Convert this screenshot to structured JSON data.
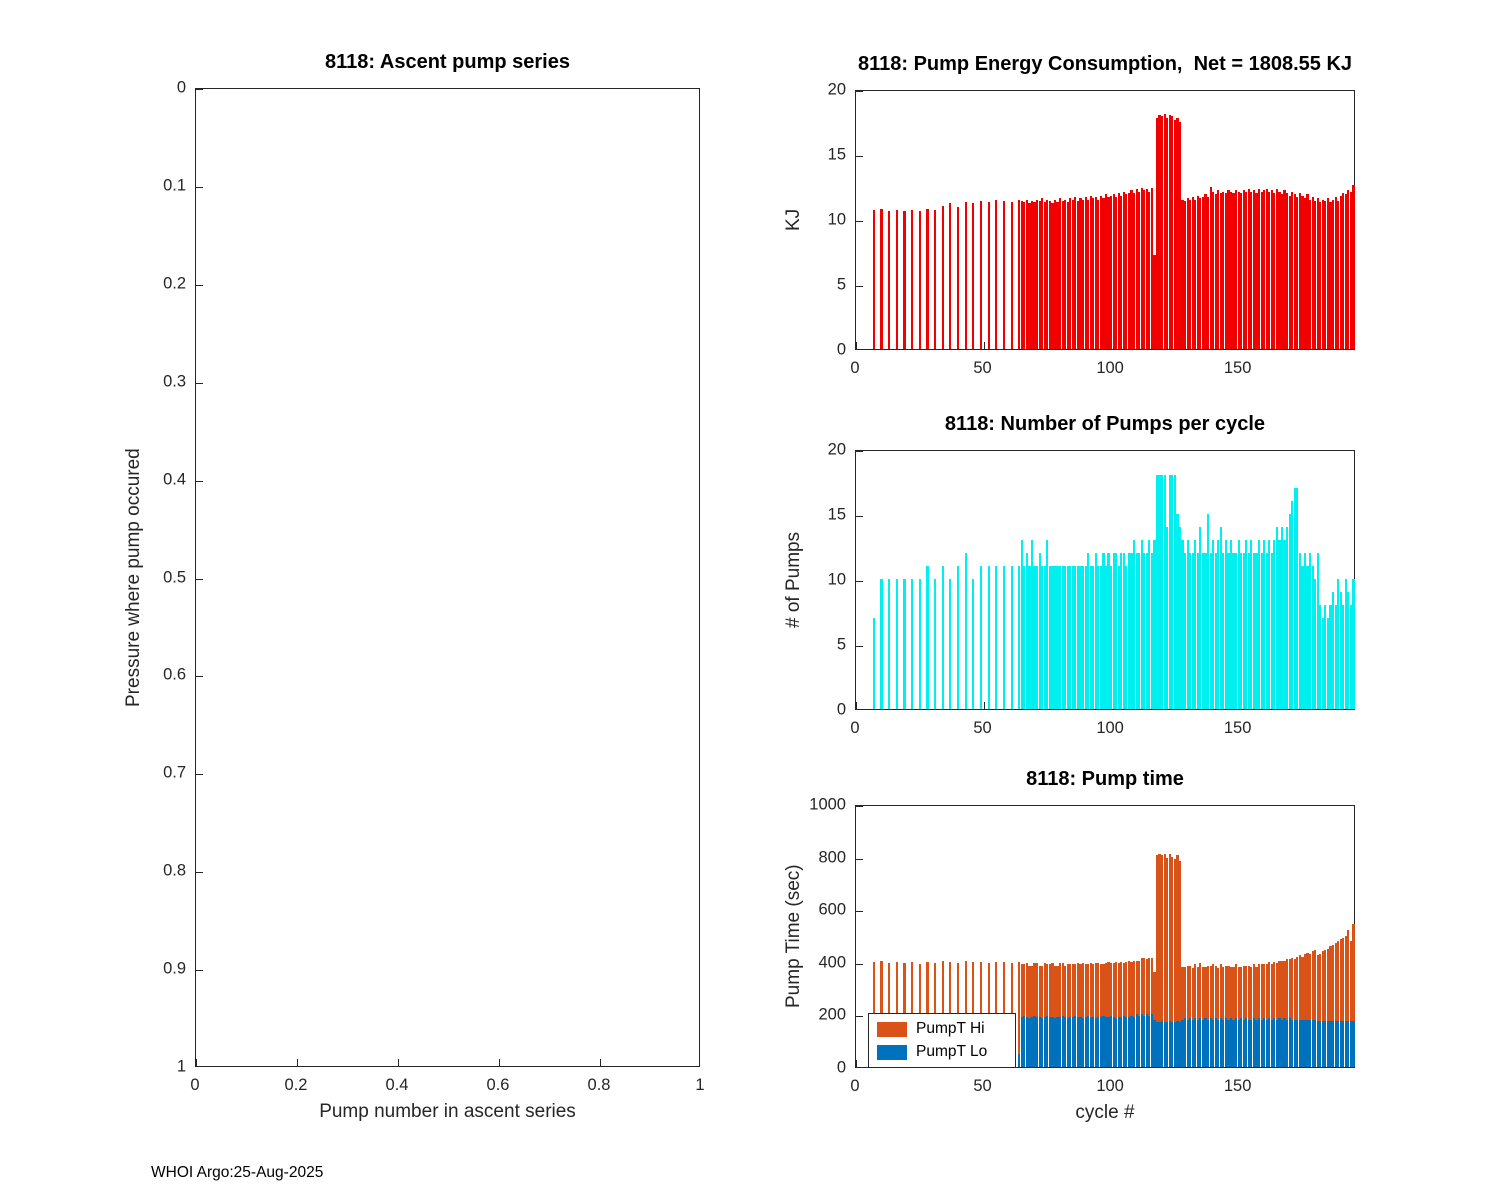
{
  "figure": {
    "footer": "WHOI Argo:25-Aug-2025"
  },
  "chart_data": [
    {
      "type": "bar",
      "title": "8118: Ascent pump series",
      "xlabel": "Pump number in ascent series",
      "ylabel": "Pressure where pump occured",
      "xlim": [
        0,
        1
      ],
      "ylim": [
        0,
        1
      ],
      "y_reversed": true,
      "grid": false,
      "xticks": [
        0,
        0.2,
        0.4,
        0.6,
        0.8,
        1
      ],
      "yticks": [
        0,
        0.1,
        0.2,
        0.3,
        0.4,
        0.5,
        0.6,
        0.7,
        0.8,
        0.9,
        1
      ],
      "values": []
    },
    {
      "type": "bar",
      "title": "8118: Pump Energy Consumption,  Net = 1808.55 KJ",
      "ylabel": "KJ",
      "net_kj": 1808.55,
      "color": "#f20000",
      "xlim": [
        0,
        196
      ],
      "ylim": [
        0,
        20
      ],
      "grid": false,
      "xticks": [
        0,
        50,
        100,
        150
      ],
      "yticks": [
        0,
        5,
        10,
        15,
        20
      ],
      "x_start": 1,
      "values": [
        0,
        0,
        0,
        0,
        0,
        0,
        10.7,
        0,
        0,
        10.8,
        0,
        0,
        10.6,
        0,
        0,
        10.7,
        0,
        0,
        10.6,
        0,
        0,
        10.7,
        0,
        0,
        10.6,
        0,
        0,
        10.8,
        0,
        0,
        10.7,
        0,
        0,
        11.0,
        0,
        0,
        11.2,
        0,
        0,
        10.9,
        0,
        0,
        11.3,
        0,
        0,
        11.2,
        0,
        0,
        11.4,
        0,
        0,
        11.3,
        0,
        0,
        11.5,
        0,
        0,
        11.4,
        0,
        0,
        11.3,
        0,
        0,
        11.5,
        11.4,
        11.3,
        11.5,
        11.2,
        11.4,
        11.3,
        11.5,
        11.4,
        11.6,
        11.3,
        11.5,
        11.4,
        11.2,
        11.5,
        11.3,
        11.6,
        11.4,
        11.5,
        11.3,
        11.6,
        11.5,
        11.7,
        11.4,
        11.6,
        11.5,
        11.7,
        11.5,
        11.8,
        11.6,
        11.7,
        11.5,
        11.8,
        11.6,
        11.9,
        11.7,
        11.8,
        11.9,
        11.7,
        12.0,
        11.8,
        12.1,
        11.9,
        12.0,
        12.2,
        12.0,
        12.3,
        12.1,
        12.4,
        12.2,
        12.3,
        12.1,
        12.4,
        7.2,
        17.8,
        18.0,
        17.9,
        18.1,
        17.8,
        18.0,
        17.9,
        17.6,
        17.8,
        17.5,
        11.5,
        11.4,
        11.6,
        11.5,
        11.7,
        11.5,
        11.8,
        11.6,
        11.7,
        11.9,
        11.7,
        12.5,
        12.1,
        11.9,
        12.2,
        12.0,
        12.1,
        12.0,
        12.2,
        12.1,
        12.0,
        12.2,
        12.1,
        12.0,
        12.2,
        12.1,
        12.3,
        12.1,
        12.2,
        12.0,
        12.3,
        12.1,
        12.2,
        12.3,
        12.1,
        12.2,
        12.0,
        12.3,
        12.1,
        11.9,
        12.2,
        12.0,
        11.8,
        12.1,
        11.9,
        11.7,
        12.0,
        11.8,
        11.6,
        11.9,
        11.5,
        11.7,
        11.4,
        11.6,
        11.3,
        11.5,
        11.4,
        11.6,
        11.3,
        11.5,
        11.7,
        11.4,
        11.8,
        12.0,
        11.9,
        12.2,
        12.1,
        12.6
      ]
    },
    {
      "type": "bar",
      "title": "8118: Number of Pumps per cycle",
      "ylabel": "# of Pumps",
      "color": "#00efef",
      "xlim": [
        0,
        196
      ],
      "ylim": [
        0,
        20
      ],
      "grid": false,
      "xticks": [
        0,
        50,
        100,
        150
      ],
      "yticks": [
        0,
        5,
        10,
        15,
        20
      ],
      "x_start": 1,
      "values": [
        0,
        0,
        0,
        0,
        0,
        0,
        7,
        0,
        0,
        10,
        0,
        0,
        10,
        0,
        0,
        10,
        0,
        0,
        10,
        0,
        0,
        10,
        0,
        0,
        10,
        0,
        0,
        11,
        0,
        0,
        10,
        0,
        0,
        11,
        0,
        0,
        10,
        0,
        0,
        11,
        0,
        0,
        12,
        0,
        0,
        10,
        0,
        0,
        11,
        0,
        0,
        11,
        0,
        0,
        11,
        0,
        0,
        11,
        0,
        0,
        11,
        0,
        0,
        11,
        13,
        11,
        12,
        11,
        13,
        11,
        11,
        12,
        11,
        11,
        13,
        11,
        11,
        11,
        11,
        11,
        11,
        11,
        11,
        11,
        11,
        11,
        11,
        11,
        11,
        11,
        12,
        11,
        11,
        12,
        11,
        11,
        12,
        11,
        12,
        11,
        12,
        12,
        11,
        12,
        12,
        11,
        12,
        12,
        13,
        12,
        12,
        13,
        12,
        12,
        13,
        12,
        13,
        18,
        18,
        18,
        18,
        14,
        18,
        18,
        18,
        15,
        14,
        13,
        12,
        13,
        12,
        12,
        13,
        12,
        14,
        12,
        12,
        15,
        12,
        13,
        12,
        13,
        14,
        12,
        13,
        12,
        13,
        12,
        12,
        13,
        12,
        12,
        13,
        12,
        13,
        12,
        12,
        13,
        12,
        13,
        12,
        13,
        12,
        13,
        14,
        13,
        14,
        13,
        14,
        15,
        16,
        17,
        17,
        12,
        11,
        12,
        11,
        12,
        11,
        10,
        12,
        8,
        7,
        8,
        7,
        8,
        9,
        8,
        10,
        9,
        8,
        10,
        9,
        8,
        10
      ]
    },
    {
      "type": "stacked-bar",
      "title": "8118: Pump time",
      "xlabel": "cycle #",
      "ylabel": "Pump Time (sec)",
      "xlim": [
        0,
        196
      ],
      "ylim": [
        0,
        1000
      ],
      "grid": false,
      "xticks": [
        0,
        50,
        100,
        150
      ],
      "yticks": [
        0,
        200,
        400,
        600,
        800,
        1000
      ],
      "x_start": 1,
      "legend_position": "bottom-left",
      "series": [
        {
          "name": "PumpT Hi",
          "color": "#d95319",
          "values": [
            0,
            0,
            0,
            0,
            0,
            0,
            350,
            0,
            0,
            355,
            0,
            0,
            345,
            0,
            0,
            350,
            0,
            0,
            345,
            0,
            0,
            350,
            0,
            0,
            340,
            0,
            0,
            350,
            0,
            0,
            345,
            0,
            0,
            355,
            0,
            0,
            350,
            0,
            0,
            345,
            0,
            0,
            355,
            0,
            0,
            350,
            0,
            0,
            350,
            0,
            0,
            345,
            0,
            0,
            350,
            0,
            0,
            350,
            0,
            0,
            345,
            0,
            0,
            350,
            200,
            195,
            205,
            200,
            195,
            200,
            205,
            195,
            200,
            205,
            195,
            200,
            205,
            200,
            195,
            205,
            200,
            195,
            205,
            200,
            200,
            195,
            205,
            200,
            210,
            200,
            195,
            205,
            200,
            210,
            205,
            200,
            195,
            205,
            210,
            200,
            205,
            215,
            205,
            210,
            200,
            210,
            215,
            205,
            215,
            205,
            210,
            215,
            220,
            210,
            220,
            215,
            180,
            635,
            640,
            630,
            640,
            625,
            635,
            630,
            620,
            630,
            615,
            200,
            195,
            205,
            200,
            195,
            205,
            200,
            210,
            200,
            195,
            205,
            200,
            210,
            200,
            195,
            205,
            200,
            200,
            205,
            195,
            200,
            205,
            200,
            195,
            205,
            200,
            205,
            200,
            205,
            200,
            205,
            210,
            205,
            210,
            215,
            210,
            215,
            215,
            220,
            225,
            220,
            230,
            225,
            235,
            230,
            240,
            245,
            240,
            250,
            255,
            250,
            260,
            265,
            250,
            255,
            265,
            270,
            275,
            285,
            290,
            295,
            305,
            310,
            315,
            325,
            345,
            305,
            370
          ]
        },
        {
          "name": "PumpT Lo",
          "color": "#0072bd",
          "values": [
            0,
            0,
            0,
            0,
            0,
            0,
            50,
            0,
            0,
            50,
            0,
            0,
            50,
            0,
            0,
            50,
            0,
            0,
            50,
            0,
            0,
            50,
            0,
            0,
            50,
            0,
            0,
            50,
            0,
            0,
            50,
            0,
            0,
            50,
            0,
            0,
            50,
            0,
            0,
            50,
            0,
            0,
            50,
            0,
            0,
            50,
            0,
            0,
            50,
            0,
            0,
            50,
            0,
            0,
            50,
            0,
            0,
            50,
            0,
            0,
            50,
            0,
            0,
            50,
            190,
            195,
            190,
            185,
            190,
            195,
            190,
            190,
            185,
            190,
            195,
            190,
            190,
            185,
            190,
            190,
            195,
            190,
            185,
            190,
            190,
            195,
            190,
            190,
            185,
            190,
            195,
            190,
            190,
            185,
            190,
            190,
            195,
            190,
            190,
            195,
            190,
            185,
            190,
            190,
            195,
            190,
            190,
            195,
            190,
            200,
            195,
            200,
            195,
            200,
            195,
            200,
            180,
            170,
            170,
            175,
            170,
            170,
            175,
            170,
            170,
            175,
            170,
            180,
            185,
            180,
            185,
            180,
            185,
            180,
            185,
            180,
            185,
            180,
            185,
            180,
            185,
            180,
            185,
            180,
            185,
            180,
            185,
            180,
            185,
            180,
            185,
            180,
            185,
            180,
            180,
            185,
            180,
            185,
            180,
            185,
            180,
            185,
            180,
            185,
            180,
            185,
            180,
            185,
            180,
            185,
            180,
            180,
            180,
            180,
            180,
            180,
            180,
            180,
            180,
            180,
            175,
            175,
            175,
            175,
            175,
            175,
            175,
            175,
            175,
            175,
            175,
            175,
            175,
            175,
            175
          ]
        }
      ]
    }
  ]
}
